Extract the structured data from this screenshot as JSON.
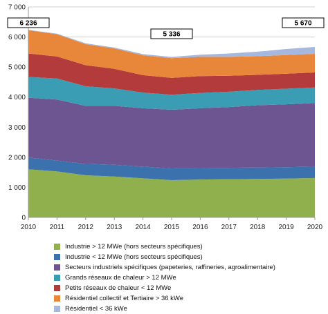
{
  "chart_data": {
    "type": "area",
    "stacked": true,
    "x": [
      2010,
      2011,
      2012,
      2013,
      2014,
      2015,
      2016,
      2017,
      2018,
      2019,
      2020
    ],
    "ylim": [
      0,
      7000
    ],
    "yticks": [
      0,
      1000,
      2000,
      3000,
      4000,
      5000,
      6000,
      7000
    ],
    "ytick_labels": [
      "0",
      "1 000",
      "2 000",
      "3 000",
      "4 000",
      "5 000",
      "6 000",
      "7 000"
    ],
    "xtick_labels": [
      "2010",
      "2011",
      "2012",
      "2013",
      "2014",
      "2015",
      "2016",
      "2017",
      "2018",
      "2019",
      "2020"
    ],
    "grid": true,
    "legend_position": "bottom",
    "series": [
      {
        "name": "Industrie > 12 MWe (hors secteurs spécifiques)",
        "color": "#8fb04c",
        "values": [
          1600,
          1530,
          1400,
          1360,
          1300,
          1240,
          1260,
          1270,
          1280,
          1290,
          1310
        ]
      },
      {
        "name": "Industrie < 12 MWe (hors secteurs spécifiques)",
        "color": "#3b72ae",
        "values": [
          390,
          360,
          380,
          390,
          390,
          390,
          380,
          380,
          380,
          380,
          380
        ]
      },
      {
        "name": "Secteurs industriels spécifiques (papeteries, raffineries, agroalimentaire)",
        "color": "#6d5591",
        "values": [
          1990,
          2030,
          1930,
          1960,
          1940,
          1950,
          1990,
          2020,
          2070,
          2090,
          2110
        ]
      },
      {
        "name": "Grands réseaux de chaleur > 12 MWe",
        "color": "#3a9db3",
        "values": [
          690,
          700,
          650,
          580,
          520,
          500,
          510,
          510,
          510,
          520,
          520
        ]
      },
      {
        "name": "Petits réseaux de chaleur < 12 MWe",
        "color": "#b33b3b",
        "values": [
          780,
          730,
          700,
          650,
          580,
          560,
          560,
          530,
          500,
          500,
          500
        ]
      },
      {
        "name": "Résidentiel collectif et Tertiaire > 36 kWe",
        "color": "#e8873a",
        "values": [
          776,
          740,
          700,
          680,
          660,
          656,
          640,
          630,
          620,
          620,
          620
        ]
      },
      {
        "name": "Résidentiel < 36 kWe",
        "color": "#a6b8de",
        "values": [
          10,
          20,
          30,
          30,
          40,
          40,
          70,
          110,
          150,
          200,
          230
        ]
      }
    ],
    "annotations": [
      {
        "text": "6 236",
        "x": 2010,
        "value": 6236
      },
      {
        "text": "5 336",
        "x": 2015,
        "value": 5336
      },
      {
        "text": "5 670",
        "x": 2020,
        "value": 5670
      }
    ]
  }
}
